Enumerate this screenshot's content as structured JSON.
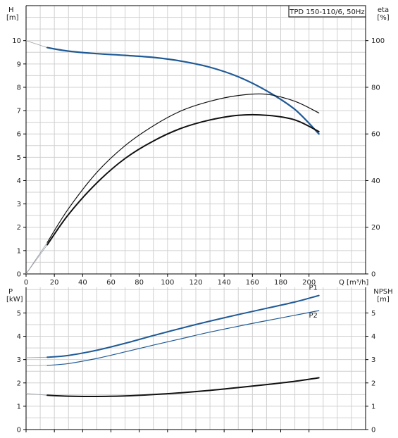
{
  "chart_data": [
    {
      "type": "line",
      "title": "TPD 150-110/6, 50Hz",
      "xlabel": "Q [m³/h]",
      "xlim": [
        0,
        240
      ],
      "xticks": [
        0,
        20,
        40,
        60,
        80,
        100,
        120,
        140,
        160,
        180,
        200
      ],
      "y_left": {
        "label_line1": "H",
        "label_line2": "[m]",
        "lim": [
          0,
          11.5
        ],
        "ticks": [
          0,
          1,
          2,
          3,
          4,
          5,
          6,
          7,
          8,
          9,
          10
        ]
      },
      "y_right": {
        "label_line1": "eta",
        "label_line2": "[%]",
        "lim": [
          0,
          115
        ],
        "ticks": [
          0,
          20,
          40,
          60,
          80,
          100
        ]
      },
      "grid": true,
      "series": [
        {
          "color": "#1f5a96",
          "width": 2.2,
          "axis": "left",
          "points": [
            [
              15,
              9.7
            ],
            [
              30,
              9.55
            ],
            [
              50,
              9.44
            ],
            [
              70,
              9.37
            ],
            [
              90,
              9.28
            ],
            [
              110,
              9.12
            ],
            [
              130,
              8.86
            ],
            [
              150,
              8.45
            ],
            [
              170,
              7.85
            ],
            [
              190,
              7.05
            ],
            [
              207,
              6.0
            ]
          ],
          "ghost": [
            [
              0,
              10.0
            ],
            [
              15,
              9.7
            ]
          ]
        },
        {
          "color": "#111111",
          "width": 1.2,
          "axis": "right",
          "points": [
            [
              15,
              13.5
            ],
            [
              30,
              28
            ],
            [
              50,
              43.5
            ],
            [
              70,
              55
            ],
            [
              90,
              63.5
            ],
            [
              110,
              70
            ],
            [
              130,
              74
            ],
            [
              150,
              76.5
            ],
            [
              170,
              77
            ],
            [
              190,
              74
            ],
            [
              207,
              69
            ]
          ],
          "ghost": [
            [
              0,
              0
            ],
            [
              15,
              13.5
            ]
          ]
        },
        {
          "color": "#111111",
          "width": 2.0,
          "axis": "right",
          "points": [
            [
              15,
              12.5
            ],
            [
              30,
              25.5
            ],
            [
              50,
              39
            ],
            [
              70,
              49.5
            ],
            [
              90,
              57
            ],
            [
              110,
              62.5
            ],
            [
              130,
              66
            ],
            [
              150,
              68
            ],
            [
              170,
              68
            ],
            [
              190,
              66
            ],
            [
              207,
              61
            ]
          ],
          "ghost": [
            [
              0,
              0
            ],
            [
              15,
              12.5
            ]
          ]
        }
      ]
    },
    {
      "type": "line",
      "xlim": [
        0,
        240
      ],
      "xticks": [
        0,
        20,
        40,
        60,
        80,
        100,
        120,
        140,
        160,
        180,
        200
      ],
      "y_left": {
        "label_line1": "P",
        "label_line2": "[kW]",
        "lim": [
          0,
          6.1
        ],
        "ticks": [
          0,
          1,
          2,
          3,
          4,
          5
        ]
      },
      "y_right": {
        "label_line1": "NPSH",
        "label_line2": "[m]",
        "lim": [
          0,
          6.1
        ],
        "ticks": [
          0,
          1,
          2,
          3,
          4,
          5
        ]
      },
      "grid": true,
      "series": [
        {
          "name": "P1",
          "color": "#1f5a96",
          "width": 2.0,
          "axis": "left",
          "points": [
            [
              15,
              3.1
            ],
            [
              30,
              3.18
            ],
            [
              50,
              3.4
            ],
            [
              70,
              3.7
            ],
            [
              90,
              4.03
            ],
            [
              110,
              4.35
            ],
            [
              130,
              4.65
            ],
            [
              150,
              4.93
            ],
            [
              170,
              5.2
            ],
            [
              190,
              5.47
            ],
            [
              207,
              5.75
            ]
          ],
          "ghost": [
            [
              0,
              3.08
            ],
            [
              15,
              3.1
            ]
          ]
        },
        {
          "name": "P2",
          "color": "#1f5a96",
          "width": 1.2,
          "axis": "left",
          "points": [
            [
              15,
              2.75
            ],
            [
              30,
              2.83
            ],
            [
              50,
              3.05
            ],
            [
              70,
              3.33
            ],
            [
              90,
              3.62
            ],
            [
              110,
              3.9
            ],
            [
              130,
              4.18
            ],
            [
              150,
              4.43
            ],
            [
              170,
              4.67
            ],
            [
              190,
              4.9
            ],
            [
              207,
              5.1
            ]
          ],
          "ghost": [
            [
              0,
              2.74
            ],
            [
              15,
              2.75
            ]
          ]
        },
        {
          "color": "#111111",
          "width": 2.0,
          "axis": "right",
          "points": [
            [
              15,
              1.47
            ],
            [
              30,
              1.43
            ],
            [
              50,
              1.42
            ],
            [
              70,
              1.44
            ],
            [
              90,
              1.5
            ],
            [
              110,
              1.58
            ],
            [
              130,
              1.68
            ],
            [
              150,
              1.8
            ],
            [
              170,
              1.93
            ],
            [
              190,
              2.07
            ],
            [
              207,
              2.22
            ]
          ],
          "ghost": [
            [
              0,
              1.55
            ],
            [
              15,
              1.47
            ]
          ]
        }
      ]
    }
  ]
}
